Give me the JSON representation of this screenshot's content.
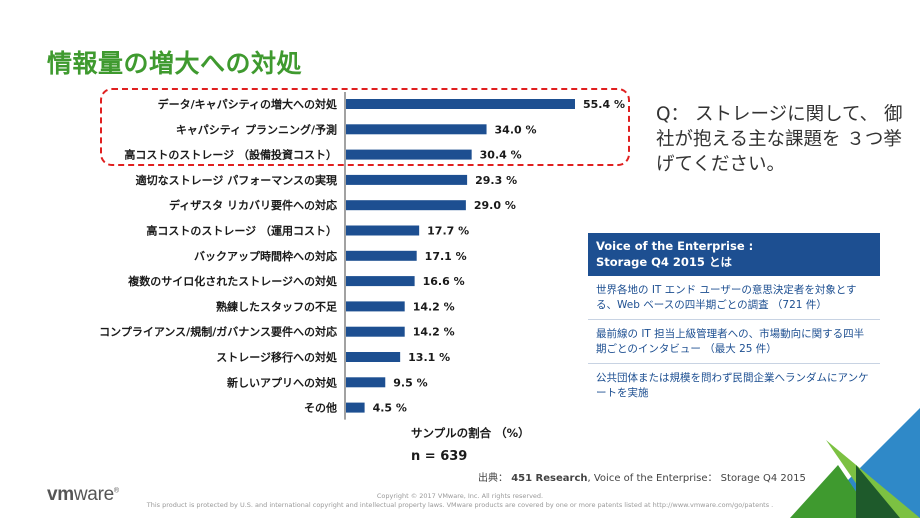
{
  "title": "情報量の増大への対処",
  "question": "Q： ストレージに関して、 御社が抱える主な課題を ３つ挙げてください。",
  "chart_data": {
    "type": "bar",
    "orientation": "horizontal",
    "categories": [
      "データ/キャパシティの増大への対処",
      "キャパシティ プランニング/予測",
      "高コストのストレージ （設備投資コスト）",
      "適切なストレージ パフォーマンスの実現",
      "ディザスタ リカバリ要件への対応",
      "高コストのストレージ （運用コスト）",
      "バックアップ時間枠への対応",
      "複数のサイロ化されたストレージへの対処",
      "熟練したスタッフの不足",
      "コンプライアンス/規制/ガバナンス要件への対応",
      "ストレージ移行への対処",
      "新しいアプリへの対処",
      "その他"
    ],
    "values": [
      55.4,
      34.0,
      30.4,
      29.3,
      29.0,
      17.7,
      17.1,
      16.6,
      14.2,
      14.2,
      13.1,
      9.5,
      4.5
    ],
    "value_labels": [
      "55.4 %",
      "34.0 %",
      "30.4 %",
      "29.3 %",
      "29.0 %",
      "17.7 %",
      "17.1 %",
      "16.6 %",
      "14.2 %",
      "14.2 %",
      "13.1 %",
      "9.5 %",
      "4.5 %"
    ],
    "xlabel": "サンプルの割合 （%）",
    "sample_size": "n = 639",
    "highlighted_top": 3,
    "bar_color": "#1d4f91",
    "highlight_color": "#e02020"
  },
  "info_panel": {
    "header_line1": "Voice of the Enterprise :",
    "header_line2": "Storage Q4 2015 とは",
    "items": [
      "世界各地の IT エンド ユーザーの意思決定者を対象とする、Web ベースの四半期ごとの調査 （721 件）",
      "最前線の IT 担当上級管理者への、市場動向に関する四半期ごとのインタビュー （最大 25 件）",
      "公共団体または規模を問わず民間企業へランダムにアンケートを実施"
    ]
  },
  "source": {
    "prefix": "出典：",
    "org": "451 Research",
    "rest": ", Voice of the Enterprise： Storage Q4 2015"
  },
  "logo": {
    "vm": "vm",
    "ware": "ware",
    "reg": "®"
  },
  "footer": {
    "line1": "Copyright © 2017 VMware, Inc. All rights reserved.",
    "line2": "This product is protected by U.S. and international copyright and intellectual property laws. VMware products are covered by one or more patents listed at http://www.vmware.com/go/patents ."
  },
  "colors": {
    "title_green": "#3f9a2f",
    "navy": "#1d4f91",
    "corner_greens": [
      "#1e5a2b",
      "#3f9a2f",
      "#7cc142"
    ],
    "corner_blue": "#2f89c8"
  }
}
